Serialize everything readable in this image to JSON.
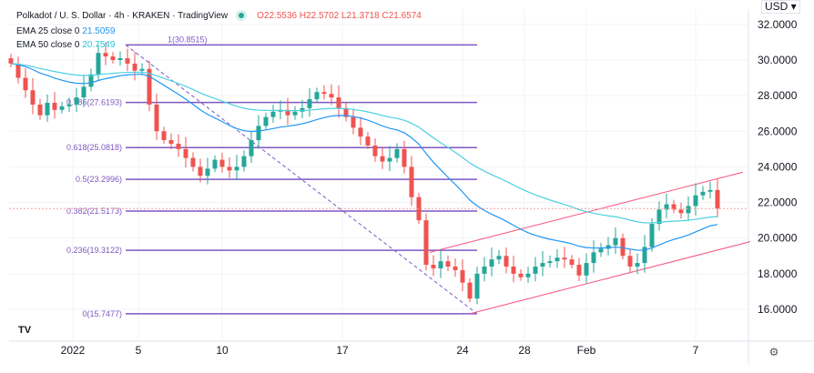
{
  "header": {
    "title": "Polkadot / U. S. Dollar · 4h · KRAKEN · TradingView",
    "ohlc": "O22.5536 H22.5702 L21.3718 C21.6574",
    "ema25_label": "EMA 25 close 0",
    "ema25_value": "21.5059",
    "ema50_label": "EMA 50 close 0",
    "ema50_value": "20.7549"
  },
  "currency_button": "USD ▾",
  "colors": {
    "up": "#26a69a",
    "down": "#ef5350",
    "fib": "#7e57c2",
    "channel": "#f7527a",
    "ema25": "#2196f3",
    "ema50": "#4dd0e1"
  },
  "chart_data": {
    "type": "candlestick",
    "title": "Polkadot / U. S. Dollar · 4h · KRAKEN",
    "ylim": [
      13.5,
      32.5
    ],
    "y_ticks": [
      "32.0000",
      "30.0000",
      "28.0000",
      "26.0000",
      "24.0000",
      "22.0000",
      "20.0000",
      "18.0000",
      "16.0000"
    ],
    "y_tick_values": [
      32,
      30,
      28,
      26,
      24,
      22,
      20,
      18,
      16
    ],
    "x_ticks": [
      {
        "label": "2022",
        "i": 8.5
      },
      {
        "label": "5",
        "i": 17.5
      },
      {
        "label": "10",
        "i": 29
      },
      {
        "label": "17",
        "i": 45.5
      },
      {
        "label": "24",
        "i": 62
      },
      {
        "label": "28",
        "i": 70.5
      },
      {
        "label": "Feb",
        "i": 79
      },
      {
        "label": "7",
        "i": 94
      }
    ],
    "closes": [
      29.8,
      29.0,
      28.3,
      27.5,
      26.9,
      27.6,
      27.2,
      27.4,
      27.5,
      27.9,
      28.5,
      29.2,
      30.4,
      30.2,
      30.0,
      30.1,
      29.8,
      29.4,
      29.5,
      27.5,
      26.0,
      25.5,
      25.3,
      25.0,
      24.5,
      24.0,
      23.5,
      23.9,
      24.4,
      24.0,
      23.8,
      24.0,
      24.6,
      25.5,
      26.3,
      26.8,
      27.1,
      27.2,
      26.9,
      27.1,
      27.3,
      27.8,
      28.2,
      28.1,
      27.9,
      27.3,
      26.8,
      26.2,
      25.7,
      25.2,
      24.6,
      24.3,
      24.5,
      25.0,
      24.0,
      22.3,
      21.0,
      18.5,
      18.3,
      18.7,
      18.4,
      18.2,
      17.5,
      16.6,
      18.0,
      18.4,
      18.8,
      19.0,
      18.4,
      18.0,
      17.8,
      18.0,
      18.4,
      18.6,
      18.7,
      18.9,
      18.8,
      18.5,
      17.9,
      18.6,
      19.2,
      19.4,
      19.6,
      20.0,
      19.0,
      18.4,
      18.6,
      19.5,
      20.8,
      21.6,
      21.9,
      21.6,
      21.4,
      21.8,
      22.4,
      22.6,
      22.7,
      21.6574
    ],
    "last_price": 21.6574,
    "fibonacci": [
      {
        "label": "1(30.8515)",
        "price": 30.8515
      },
      {
        "label": "0.786(27.6193)",
        "price": 27.6193
      },
      {
        "label": "0.618(25.0818)",
        "price": 25.0818
      },
      {
        "label": "0.5(23.2996)",
        "price": 23.2996
      },
      {
        "label": "0.382(21.5173)",
        "price": 21.5173
      },
      {
        "label": "0.236(19.3122)",
        "price": 19.3122
      },
      {
        "label": "0(15.7477)",
        "price": 15.7477
      }
    ],
    "fib_range_index": [
      14,
      63
    ],
    "channel": {
      "upper": [
        [
          57.5,
          19.2
        ],
        [
          100.5,
          23.7
        ]
      ],
      "lower": [
        [
          63,
          15.75
        ],
        [
          101.5,
          19.8
        ]
      ]
    },
    "ema_periods": [
      25,
      50
    ]
  }
}
